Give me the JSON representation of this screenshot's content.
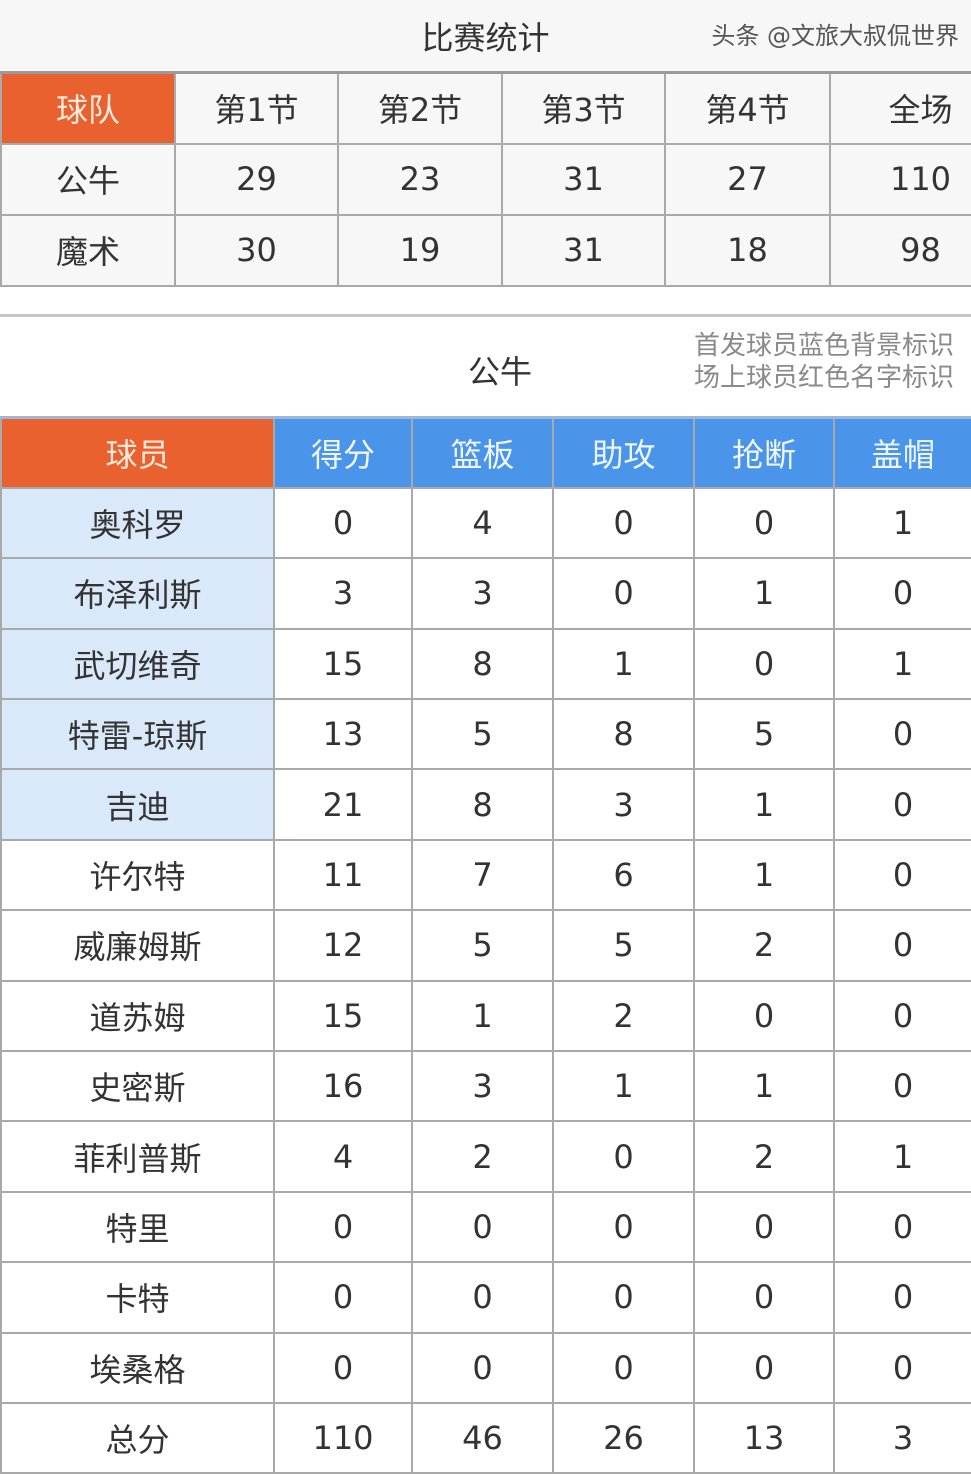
{
  "title": "比赛统计",
  "quarter_table": {
    "headers": [
      "球队",
      "第1节",
      "第2节",
      "第3节",
      "第4节",
      "全场"
    ],
    "rows": [
      {
        "team": "公牛",
        "scores": [
          "29",
          "23",
          "31",
          "27",
          "110"
        ]
      },
      {
        "team": "魔术",
        "scores": [
          "30",
          "19",
          "31",
          "18",
          "98"
        ]
      }
    ]
  },
  "team_section": {
    "title": "公牛",
    "legend": [
      "首发球员蓝色背景标识",
      "场上球员红色名字标识"
    ]
  },
  "player_table": {
    "headers": [
      "球员",
      "得分",
      "篮板",
      "助攻",
      "抢断",
      "盖帽"
    ],
    "rows": [
      {
        "name": "奥科罗",
        "starter": true,
        "stats": [
          "0",
          "4",
          "0",
          "0",
          "1"
        ]
      },
      {
        "name": "布泽利斯",
        "starter": true,
        "stats": [
          "3",
          "3",
          "0",
          "1",
          "0"
        ]
      },
      {
        "name": "武切维奇",
        "starter": true,
        "stats": [
          "15",
          "8",
          "1",
          "0",
          "1"
        ]
      },
      {
        "name": "特雷-琼斯",
        "starter": true,
        "stats": [
          "13",
          "5",
          "8",
          "5",
          "0"
        ]
      },
      {
        "name": "吉迪",
        "starter": true,
        "stats": [
          "21",
          "8",
          "3",
          "1",
          "0"
        ]
      },
      {
        "name": "许尔特",
        "starter": false,
        "stats": [
          "11",
          "7",
          "6",
          "1",
          "0"
        ]
      },
      {
        "name": "威廉姆斯",
        "starter": false,
        "stats": [
          "12",
          "5",
          "5",
          "2",
          "0"
        ]
      },
      {
        "name": "道苏姆",
        "starter": false,
        "stats": [
          "15",
          "1",
          "2",
          "0",
          "0"
        ]
      },
      {
        "name": "史密斯",
        "starter": false,
        "stats": [
          "16",
          "3",
          "1",
          "1",
          "0"
        ]
      },
      {
        "name": "菲利普斯",
        "starter": false,
        "stats": [
          "4",
          "2",
          "0",
          "2",
          "1"
        ]
      },
      {
        "name": "特里",
        "starter": false,
        "stats": [
          "0",
          "0",
          "0",
          "0",
          "0"
        ]
      },
      {
        "name": "卡特",
        "starter": false,
        "stats": [
          "0",
          "0",
          "0",
          "0",
          "0"
        ]
      },
      {
        "name": "埃桑格",
        "starter": false,
        "stats": [
          "0",
          "0",
          "0",
          "0",
          "0"
        ]
      },
      {
        "name": "总分",
        "starter": false,
        "stats": [
          "110",
          "46",
          "26",
          "13",
          "3"
        ]
      }
    ]
  },
  "watermark": "头条 @文旅大叔侃世界",
  "colors": {
    "header_orange": "#e9612f",
    "header_blue": "#4a94ea",
    "starter_bg": "#d9e9f9"
  }
}
